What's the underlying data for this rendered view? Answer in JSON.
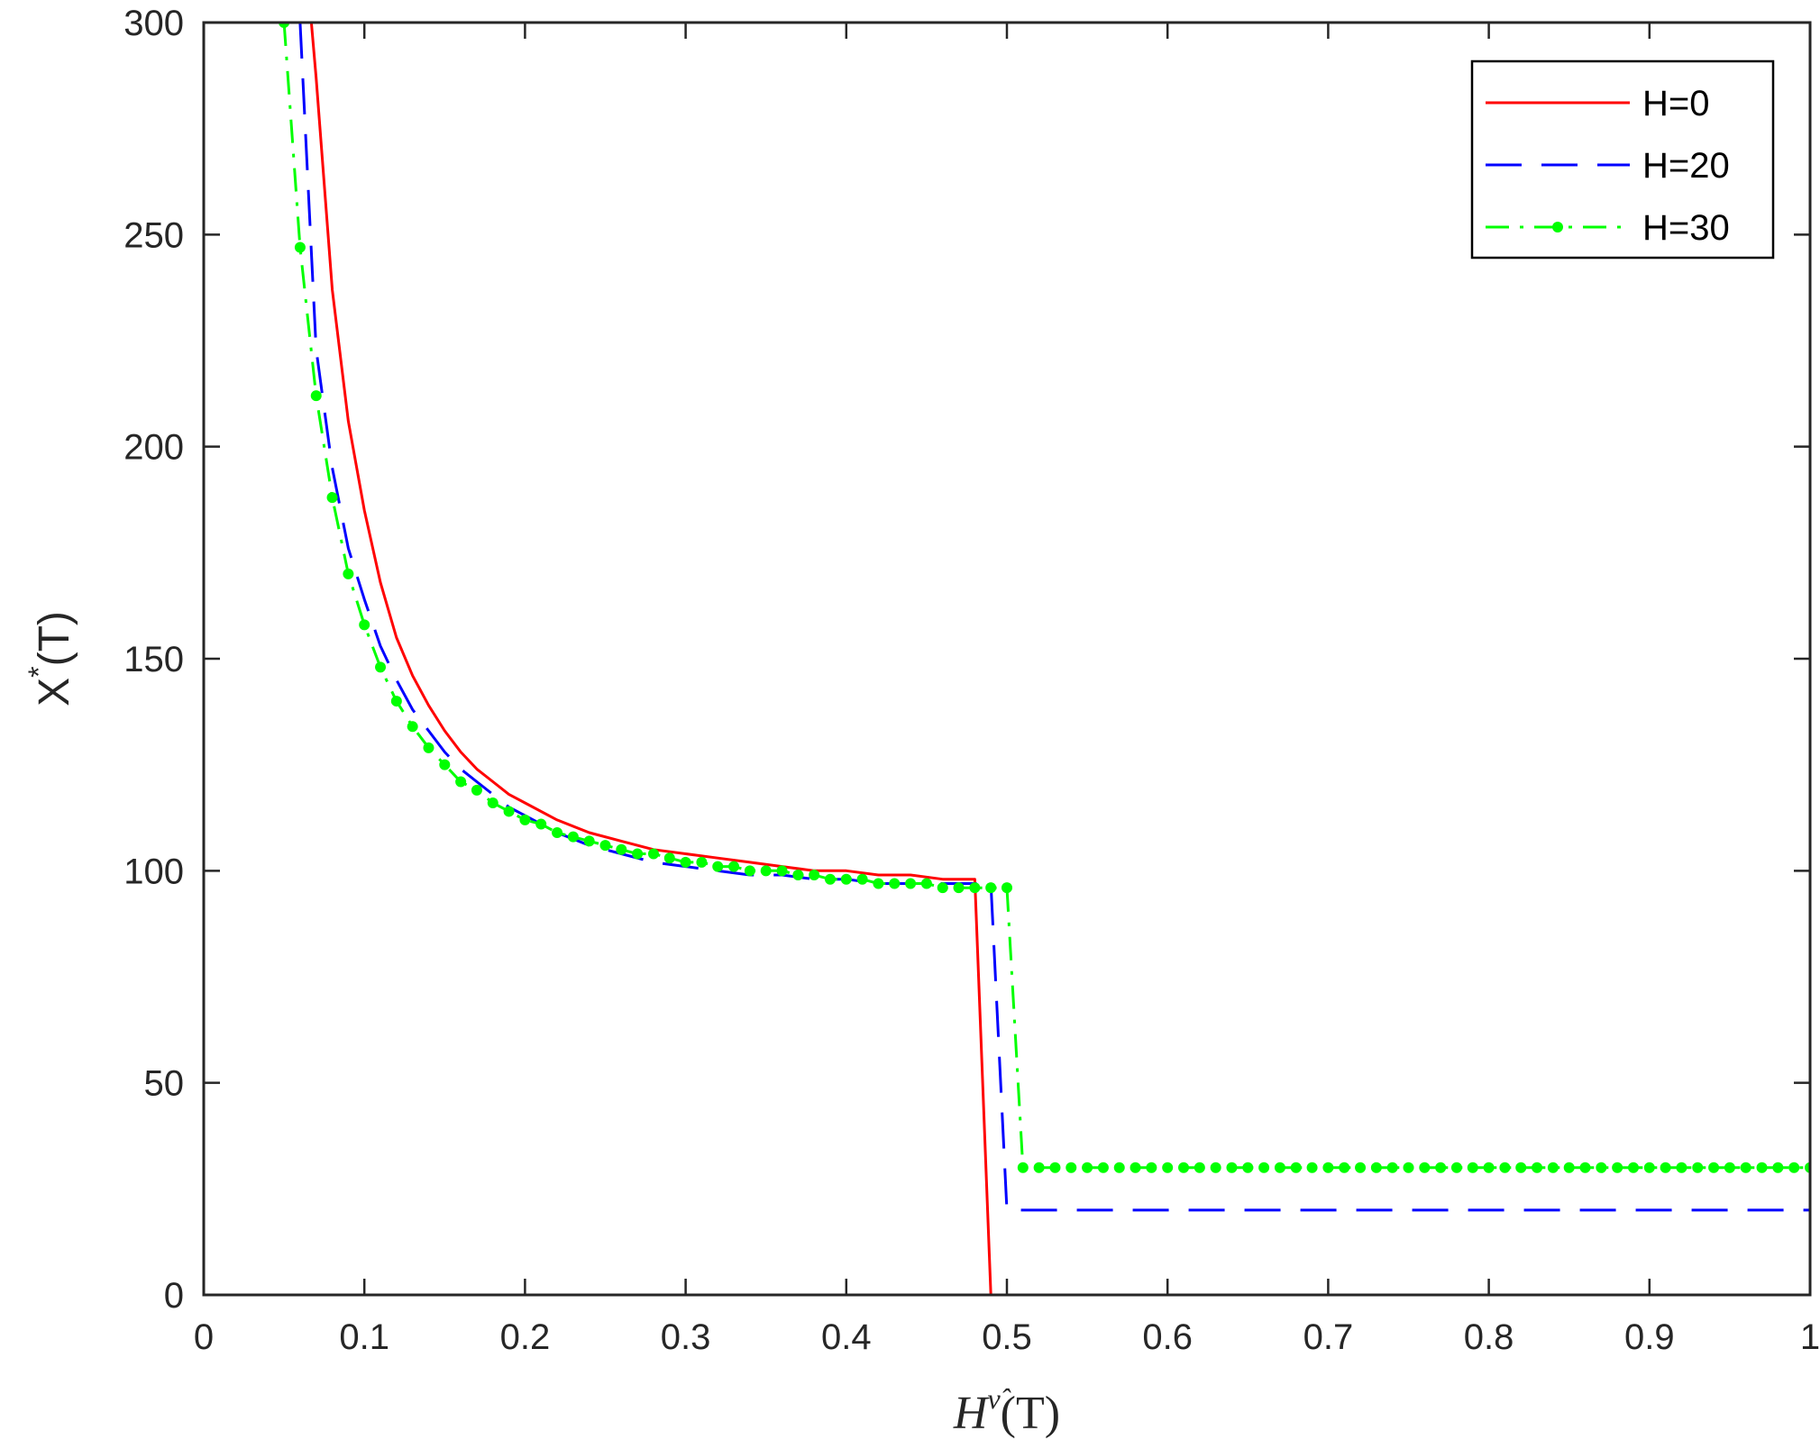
{
  "chart_data": {
    "type": "line",
    "title": "",
    "xlabel": {
      "base": "H",
      "superscript": "ν̂",
      "suffix": "(T)"
    },
    "ylabel": {
      "base": "X",
      "superscript": "*",
      "suffix": "(T)"
    },
    "xlim": [
      0,
      1
    ],
    "ylim": [
      0,
      300
    ],
    "xticks": [
      0,
      0.1,
      0.2,
      0.3,
      0.4,
      0.5,
      0.6,
      0.7,
      0.8,
      0.9,
      1
    ],
    "xtick_labels": [
      "0",
      "0.1",
      "0.2",
      "0.3",
      "0.4",
      "0.5",
      "0.6",
      "0.7",
      "0.8",
      "0.9",
      "1"
    ],
    "yticks": [
      0,
      50,
      100,
      150,
      200,
      250,
      300
    ],
    "ytick_labels": [
      "0",
      "50",
      "100",
      "150",
      "200",
      "250",
      "300"
    ],
    "grid": false,
    "legend_position": "top-right",
    "series": [
      {
        "name": "H=0",
        "color": "#ff0000",
        "style": "solid",
        "marker": "none",
        "x": [
          0.067,
          0.07,
          0.08,
          0.09,
          0.1,
          0.11,
          0.12,
          0.13,
          0.14,
          0.15,
          0.16,
          0.17,
          0.18,
          0.19,
          0.2,
          0.22,
          0.24,
          0.26,
          0.28,
          0.3,
          0.32,
          0.34,
          0.36,
          0.38,
          0.4,
          0.42,
          0.44,
          0.46,
          0.48,
          0.49,
          0.49,
          0.6,
          0.7,
          0.8,
          0.9,
          1.0
        ],
        "y": [
          300,
          287,
          237,
          206,
          185,
          168,
          155,
          146,
          139,
          133,
          128,
          124,
          121,
          118,
          116,
          112,
          109,
          107,
          105,
          104,
          103,
          102,
          101,
          100,
          100,
          99,
          99,
          98,
          98,
          0,
          0,
          0,
          0,
          0,
          0,
          0
        ]
      },
      {
        "name": "H=20",
        "color": "#0000ff",
        "style": "dashed",
        "marker": "none",
        "x": [
          0.06,
          0.07,
          0.08,
          0.09,
          0.1,
          0.11,
          0.12,
          0.13,
          0.14,
          0.15,
          0.16,
          0.17,
          0.18,
          0.19,
          0.2,
          0.22,
          0.24,
          0.26,
          0.28,
          0.3,
          0.32,
          0.34,
          0.36,
          0.38,
          0.4,
          0.42,
          0.44,
          0.46,
          0.48,
          0.49,
          0.5,
          0.6,
          0.7,
          0.8,
          0.9,
          1.0
        ],
        "y": [
          300,
          223,
          195,
          176,
          164,
          153,
          145,
          138,
          133,
          128,
          124,
          121,
          118,
          115,
          113,
          109,
          106,
          104,
          102,
          101,
          100,
          99,
          99,
          98,
          98,
          97,
          97,
          97,
          97,
          97,
          20,
          20,
          20,
          20,
          20,
          20
        ]
      },
      {
        "name": "H=30",
        "color": "#00ff00",
        "style": "dashdot",
        "marker": "dot",
        "x": [
          0.05,
          0.06,
          0.07,
          0.08,
          0.09,
          0.1,
          0.11,
          0.12,
          0.13,
          0.14,
          0.15,
          0.16,
          0.17,
          0.18,
          0.19,
          0.2,
          0.21,
          0.22,
          0.23,
          0.24,
          0.25,
          0.26,
          0.27,
          0.28,
          0.29,
          0.3,
          0.31,
          0.32,
          0.33,
          0.34,
          0.35,
          0.36,
          0.37,
          0.38,
          0.39,
          0.4,
          0.41,
          0.42,
          0.43,
          0.44,
          0.45,
          0.46,
          0.47,
          0.48,
          0.49,
          0.5,
          0.51,
          0.52,
          0.53,
          0.54,
          0.55,
          0.56,
          0.57,
          0.58,
          0.59,
          0.6,
          0.61,
          0.62,
          0.63,
          0.64,
          0.65,
          0.66,
          0.67,
          0.68,
          0.69,
          0.7,
          0.71,
          0.72,
          0.73,
          0.74,
          0.75,
          0.76,
          0.77,
          0.78,
          0.79,
          0.8,
          0.81,
          0.82,
          0.83,
          0.84,
          0.85,
          0.86,
          0.87,
          0.88,
          0.89,
          0.9,
          0.91,
          0.92,
          0.93,
          0.94,
          0.95,
          0.96,
          0.97,
          0.98,
          0.99,
          1.0
        ],
        "y": [
          300,
          247,
          212,
          188,
          170,
          158,
          148,
          140,
          134,
          129,
          125,
          121,
          119,
          116,
          114,
          112,
          111,
          109,
          108,
          107,
          106,
          105,
          104,
          104,
          103,
          102,
          102,
          101,
          101,
          100,
          100,
          100,
          99,
          99,
          98,
          98,
          98,
          97,
          97,
          97,
          97,
          96,
          96,
          96,
          96,
          96,
          30,
          30,
          30,
          30,
          30,
          30,
          30,
          30,
          30,
          30,
          30,
          30,
          30,
          30,
          30,
          30,
          30,
          30,
          30,
          30,
          30,
          30,
          30,
          30,
          30,
          30,
          30,
          30,
          30,
          30,
          30,
          30,
          30,
          30,
          30,
          30,
          30,
          30,
          30,
          30,
          30,
          30,
          30,
          30,
          30,
          30,
          30,
          30,
          30,
          30
        ]
      }
    ]
  }
}
